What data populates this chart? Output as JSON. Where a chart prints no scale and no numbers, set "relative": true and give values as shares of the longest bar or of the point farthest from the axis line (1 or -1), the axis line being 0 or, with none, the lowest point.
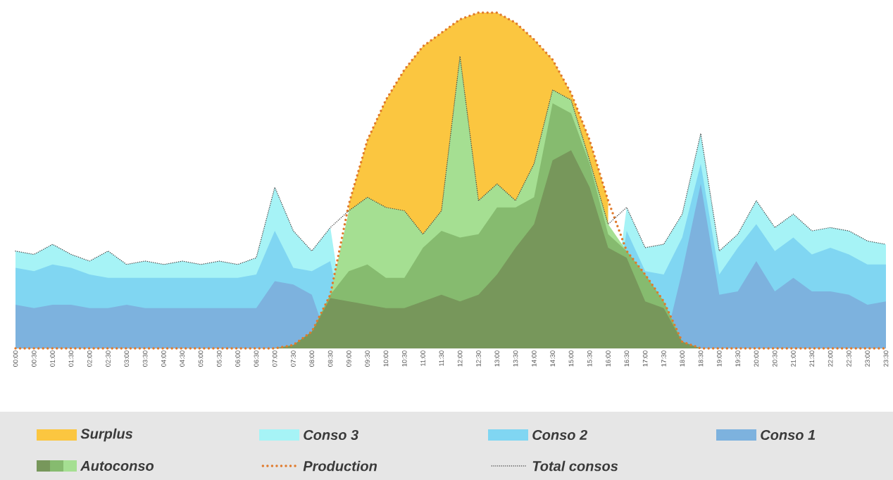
{
  "chart_data": {
    "type": "area",
    "relative": true,
    "legend": "bottom",
    "categories": [
      "00:00",
      "00:30",
      "01:00",
      "01:30",
      "02:00",
      "02:30",
      "03:00",
      "03:30",
      "04:00",
      "04:30",
      "05:00",
      "05:30",
      "06:00",
      "06:30",
      "07:00",
      "07:30",
      "08:00",
      "08:30",
      "09:00",
      "09:30",
      "10:00",
      "10:30",
      "11:00",
      "11:30",
      "12:00",
      "12:30",
      "13:00",
      "13:30",
      "14:00",
      "14:30",
      "15:00",
      "15:30",
      "16:00",
      "16:30",
      "17:00",
      "17:30",
      "18:00",
      "18:30",
      "19:00",
      "19:30",
      "20:00",
      "20:30",
      "21:00",
      "21:30",
      "22:00",
      "22:30",
      "23:00",
      "23:30"
    ],
    "series": [
      {
        "name": "Surplus",
        "color": "#fbc640",
        "values": [
          null,
          null,
          null,
          null,
          null,
          null,
          null,
          null,
          null,
          null,
          null,
          null,
          null,
          null,
          null,
          null,
          null,
          null,
          0.43,
          0.62,
          0.74,
          0.83,
          0.9,
          0.94,
          0.98,
          1.0,
          1.0,
          0.97,
          0.92,
          0.86,
          0.76,
          0.62,
          0.44,
          null,
          null,
          null,
          null,
          null,
          null,
          null,
          null,
          null,
          null,
          null,
          null,
          null,
          null,
          null
        ]
      },
      {
        "name": "Conso 3",
        "color": "#a6f3f6",
        "values": [
          0.29,
          0.28,
          0.31,
          0.28,
          0.26,
          0.29,
          0.25,
          0.26,
          0.25,
          0.26,
          0.25,
          0.26,
          0.25,
          0.27,
          0.48,
          0.35,
          0.29,
          0.36,
          null,
          null,
          null,
          null,
          null,
          null,
          null,
          null,
          null,
          null,
          null,
          null,
          null,
          null,
          null,
          0.42,
          0.3,
          0.31,
          0.4,
          0.64,
          0.29,
          0.34,
          0.44,
          0.36,
          0.4,
          0.35,
          0.36,
          0.35,
          0.32,
          0.31
        ]
      },
      {
        "name": "Conso 2",
        "color": "#80d6f2",
        "values": [
          0.24,
          0.23,
          0.25,
          0.24,
          0.22,
          0.21,
          0.21,
          0.21,
          0.21,
          0.21,
          0.21,
          0.21,
          0.21,
          0.22,
          0.35,
          0.24,
          0.23,
          0.26,
          null,
          null,
          null,
          null,
          null,
          null,
          null,
          null,
          null,
          null,
          null,
          null,
          null,
          null,
          null,
          0.35,
          0.23,
          0.22,
          0.33,
          0.55,
          0.22,
          0.3,
          0.37,
          0.29,
          0.33,
          0.28,
          0.3,
          0.28,
          0.25,
          0.25
        ]
      },
      {
        "name": "Conso 1",
        "color": "#7db2de",
        "values": [
          0.13,
          0.12,
          0.13,
          0.13,
          0.12,
          0.12,
          0.13,
          0.12,
          0.12,
          0.12,
          0.12,
          0.12,
          0.12,
          0.12,
          0.2,
          0.19,
          0.16,
          null,
          null,
          null,
          null,
          null,
          null,
          null,
          null,
          null,
          null,
          null,
          null,
          null,
          null,
          null,
          null,
          null,
          null,
          null,
          0.23,
          0.49,
          0.16,
          0.17,
          0.26,
          0.17,
          0.21,
          0.17,
          0.17,
          0.16,
          0.13,
          0.14
        ]
      },
      {
        "name": "Autoconso",
        "color": "#a5df92",
        "values": [
          0,
          0,
          0,
          0,
          0,
          0,
          0,
          0,
          0,
          0,
          0,
          0,
          0,
          0,
          0,
          0.01,
          0.05,
          0.16,
          0.41,
          0.45,
          0.42,
          0.41,
          0.34,
          0.41,
          0.87,
          0.44,
          0.49,
          0.44,
          0.55,
          0.77,
          0.74,
          0.56,
          0.37,
          0.29,
          0.22,
          0.14,
          0.02,
          0,
          0,
          0,
          0,
          0,
          0,
          0,
          0,
          0,
          0,
          0
        ]
      },
      {
        "color": "#86bb6f",
        "values": [
          0,
          0,
          0,
          0,
          0,
          0,
          0,
          0,
          0,
          0,
          0,
          0,
          0,
          0,
          0,
          0.01,
          0.05,
          0.16,
          0.23,
          0.25,
          0.21,
          0.21,
          0.3,
          0.35,
          0.33,
          0.34,
          0.42,
          0.42,
          0.45,
          0.73,
          0.7,
          0.55,
          0.34,
          0.29,
          0.22,
          0.14,
          0.02,
          0,
          0,
          0,
          0,
          0,
          0,
          0,
          0,
          0,
          0,
          0
        ]
      },
      {
        "color": "#77975b",
        "values": [
          0,
          0,
          0,
          0,
          0,
          0,
          0,
          0,
          0,
          0,
          0,
          0,
          0,
          0,
          0,
          0.01,
          0.05,
          0.15,
          0.14,
          0.13,
          0.12,
          0.12,
          0.14,
          0.16,
          0.14,
          0.16,
          0.22,
          0.3,
          0.37,
          0.56,
          0.59,
          0.48,
          0.3,
          0.27,
          0.14,
          0.12,
          0.02,
          0,
          0,
          0,
          0,
          0,
          0,
          0,
          0,
          0,
          0,
          0
        ]
      },
      {
        "name": "Production",
        "type": "line",
        "color": "#e07a2c",
        "line_style": "dotted",
        "values": [
          0,
          0,
          0,
          0,
          0,
          0,
          0,
          0,
          0,
          0,
          0,
          0,
          0,
          0,
          0,
          0.01,
          0.05,
          0.16,
          0.43,
          0.62,
          0.74,
          0.83,
          0.9,
          0.94,
          0.98,
          1.0,
          1.0,
          0.97,
          0.92,
          0.86,
          0.76,
          0.62,
          0.44,
          0.29,
          0.22,
          0.14,
          0.02,
          0,
          0,
          0,
          0,
          0,
          0,
          0,
          0,
          0,
          0,
          0
        ]
      },
      {
        "name": "Total consos",
        "type": "line",
        "color": "#404040",
        "line_style": "dotted",
        "values": [
          0.29,
          0.28,
          0.31,
          0.28,
          0.26,
          0.29,
          0.25,
          0.26,
          0.25,
          0.26,
          0.25,
          0.26,
          0.25,
          0.27,
          0.48,
          0.35,
          0.29,
          0.36,
          0.41,
          0.45,
          0.42,
          0.41,
          0.34,
          0.41,
          0.87,
          0.44,
          0.49,
          0.44,
          0.55,
          0.77,
          0.74,
          0.56,
          0.37,
          0.42,
          0.3,
          0.31,
          0.4,
          0.64,
          0.29,
          0.34,
          0.44,
          0.36,
          0.4,
          0.35,
          0.36,
          0.35,
          0.32,
          0.31
        ]
      }
    ]
  }
}
